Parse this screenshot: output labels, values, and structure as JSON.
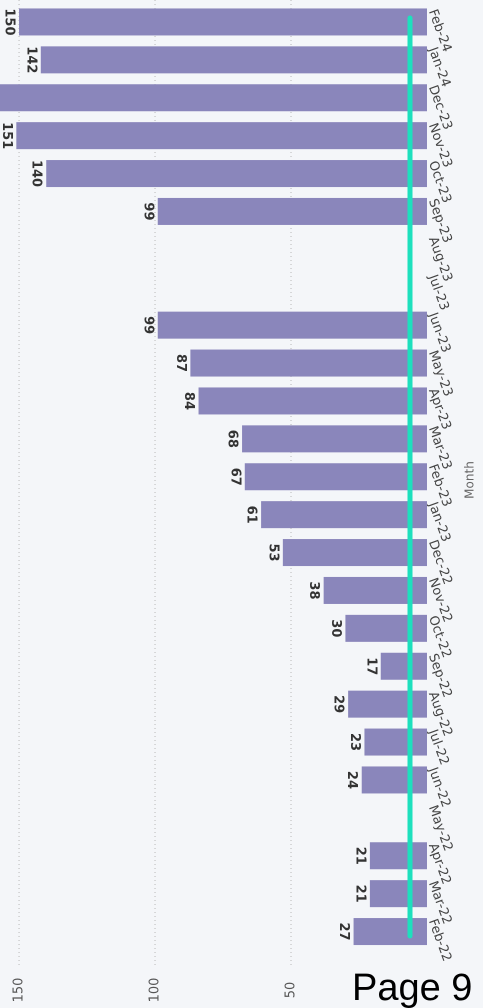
{
  "chart_data": {
    "type": "bar",
    "orientation": "horizontal",
    "axis_title": "Month",
    "categories": [
      "Feb-24",
      "Jan-24",
      "Dec-23",
      "Nov-23",
      "Oct-23",
      "Sep-23",
      "Aug-23",
      "Jul-23",
      "Jun-23",
      "May-23",
      "Apr-23",
      "Mar-23",
      "Feb-23",
      "Jan-23",
      "Dec-22",
      "Nov-22",
      "Oct-22",
      "Sep-22",
      "Aug-22",
      "Jul-22",
      "Jun-22",
      "May-22",
      "Apr-22",
      "Mar-22",
      "Feb-22"
    ],
    "values": [
      150,
      142,
      157,
      151,
      140,
      99,
      null,
      null,
      99,
      87,
      84,
      68,
      67,
      61,
      53,
      38,
      30,
      17,
      29,
      23,
      24,
      null,
      21,
      21,
      27
    ],
    "color": "#8a86bb",
    "xlim": [
      0,
      157
    ],
    "xticks": [
      50,
      100,
      150
    ],
    "grid": true
  },
  "footer": "Page 9"
}
